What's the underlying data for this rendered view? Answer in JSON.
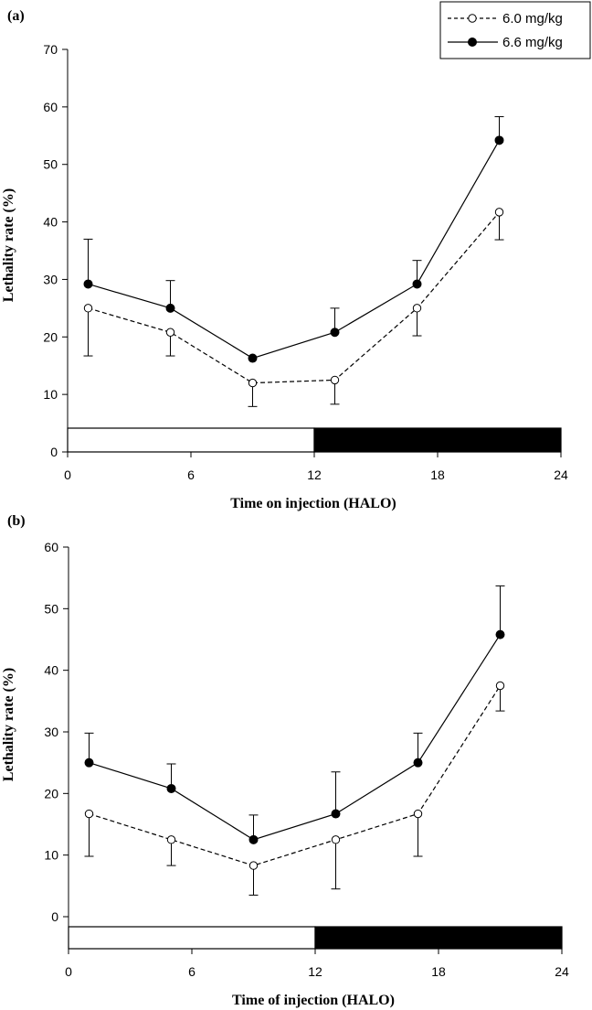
{
  "legend": [
    {
      "label": "6.0 mg/kg",
      "marker": "open-circle",
      "line": "dashed"
    },
    {
      "label": "6.6 mg/kg",
      "marker": "filled-circle",
      "line": "solid"
    }
  ],
  "chart_data": [
    {
      "type": "line",
      "panel_label": "(a)",
      "xlabel": "Time on injection (HALO)",
      "ylabel": "Lethality rate (%)",
      "xlim": [
        0,
        24
      ],
      "ylim": [
        0,
        70
      ],
      "xticks": [
        0,
        6,
        12,
        18,
        24
      ],
      "yticks": [
        0,
        10,
        20,
        30,
        40,
        50,
        60,
        70
      ],
      "x": [
        1,
        5,
        9,
        13,
        17,
        21
      ],
      "series": [
        {
          "name": "6.0 mg/kg",
          "values": [
            25,
            20.8,
            12,
            12.5,
            25,
            41.7
          ],
          "err_low": [
            8.3,
            4.1,
            4.1,
            4.2,
            4.8,
            4.8
          ],
          "err_high": [
            0,
            0,
            0,
            0,
            0,
            0
          ]
        },
        {
          "name": "6.6 mg/kg",
          "values": [
            29.2,
            25,
            16.3,
            20.8,
            29.2,
            54.2
          ],
          "err_low": [
            0,
            0,
            0,
            0,
            0,
            0
          ],
          "err_high": [
            7.8,
            4.8,
            0,
            4.2,
            4.1,
            4.1
          ]
        }
      ],
      "light_dark_bar": [
        {
          "from": 0,
          "to": 12,
          "fill": "#ffffff"
        },
        {
          "from": 12,
          "to": 24,
          "fill": "#000000"
        }
      ],
      "grid": false,
      "legend_position": "top-right"
    },
    {
      "type": "line",
      "panel_label": "(b)",
      "xlabel": "Time of injection (HALO)",
      "ylabel": "Lethality rate (%)",
      "xlim": [
        0,
        24
      ],
      "ylim": [
        -5.2,
        60
      ],
      "xticks": [
        0,
        6,
        12,
        18,
        24
      ],
      "yticks": [
        0,
        10,
        20,
        30,
        40,
        50,
        60
      ],
      "x": [
        1,
        5,
        9,
        13,
        17,
        21
      ],
      "series": [
        {
          "name": "6.0 mg/kg",
          "values": [
            16.7,
            12.5,
            8.3,
            12.5,
            16.7,
            37.5
          ],
          "err_low": [
            6.9,
            4.2,
            4.8,
            8.0,
            6.9,
            4.1
          ],
          "err_high": [
            0,
            0,
            0,
            0,
            0,
            0
          ]
        },
        {
          "name": "6.6 mg/kg",
          "values": [
            25,
            20.8,
            12.5,
            16.7,
            25,
            45.8
          ],
          "err_low": [
            0,
            0,
            0,
            0,
            0,
            0
          ],
          "err_high": [
            4.8,
            4.0,
            4.0,
            6.8,
            4.8,
            7.9
          ]
        }
      ],
      "light_dark_bar": [
        {
          "from": 0,
          "to": 12,
          "fill": "#ffffff"
        },
        {
          "from": 12,
          "to": 24,
          "fill": "#000000"
        }
      ],
      "grid": false,
      "legend_position": "none"
    }
  ]
}
